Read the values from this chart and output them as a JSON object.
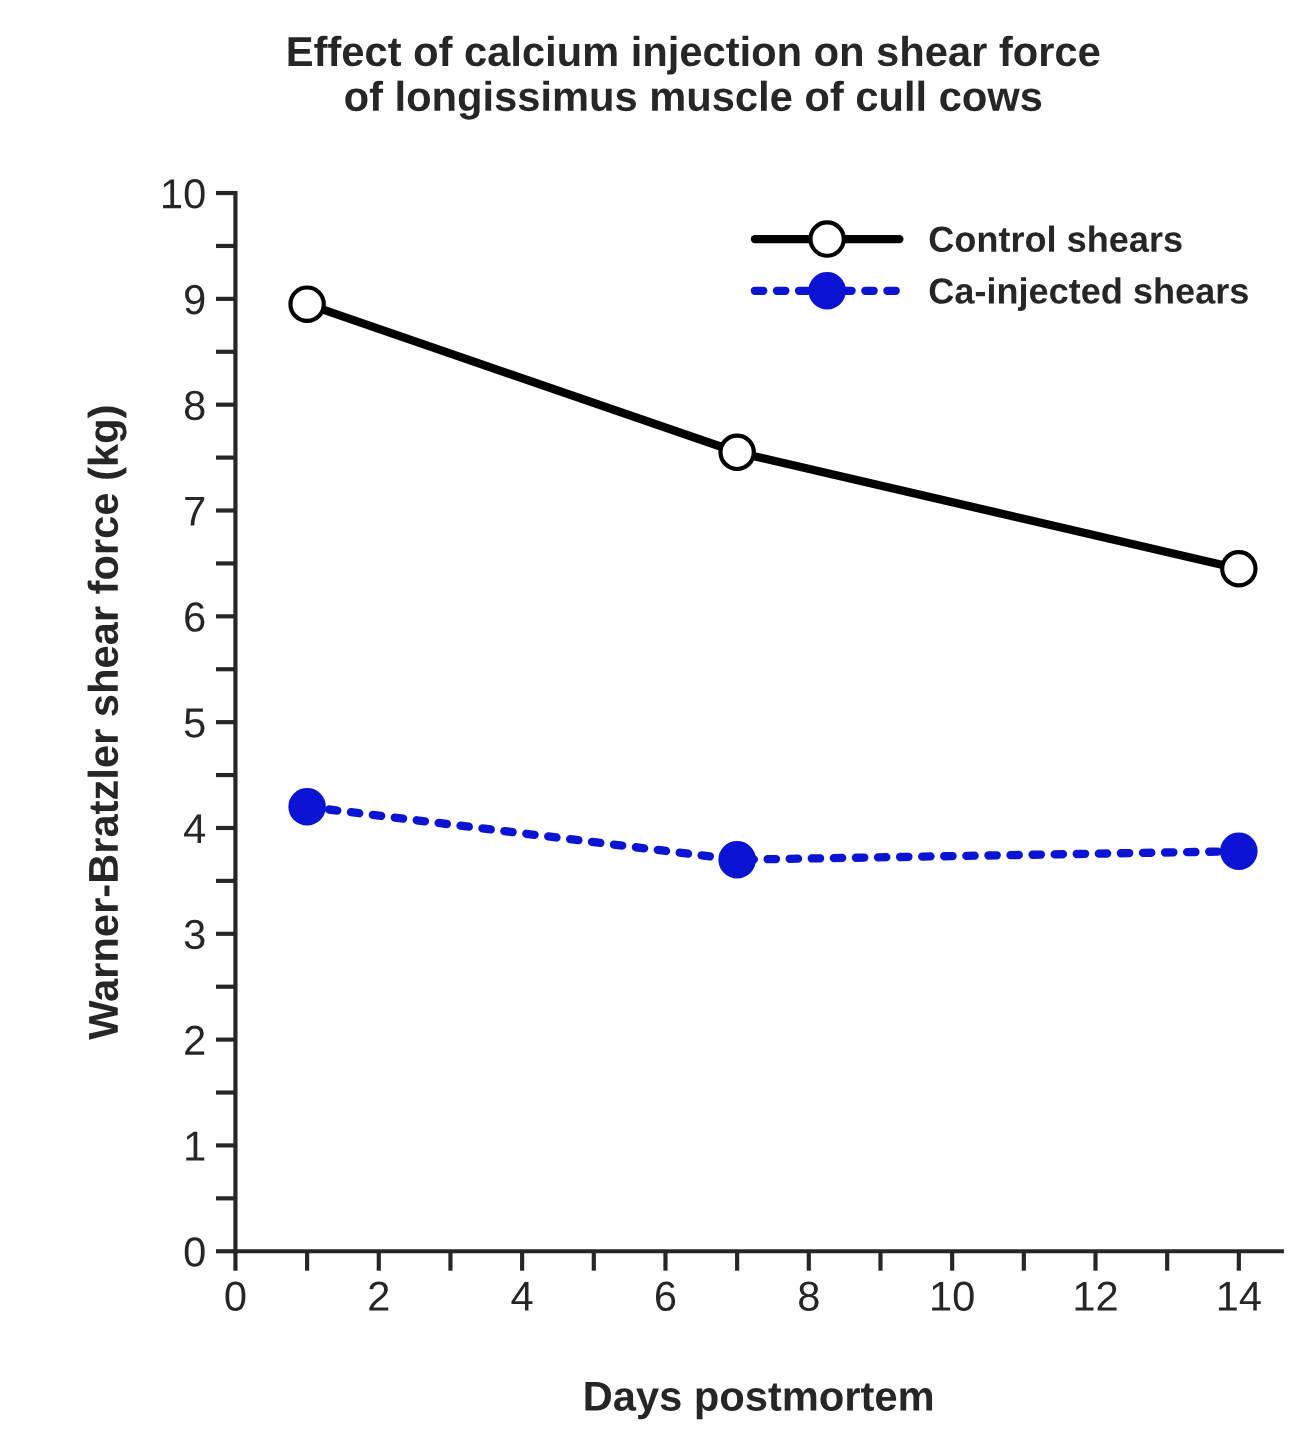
{
  "chart_data": {
    "type": "line",
    "title": "Effect of calcium injection on shear force\nof longissimus muscle of cull cows",
    "xlabel": "Days postmortem",
    "ylabel": "Warner-Bratzler shear force (kg)",
    "x": [
      1,
      7,
      14
    ],
    "series": [
      {
        "name": "Control shears",
        "color": "#000000",
        "values": [
          8.95,
          7.55,
          6.45
        ],
        "line_style": "solid"
      },
      {
        "name": "Ca-injected shears",
        "color": "#0a14d2",
        "values": [
          4.2,
          3.7,
          3.78
        ],
        "line_style": "dotted"
      }
    ],
    "xlim": [
      0,
      14.6
    ],
    "ylim": [
      0,
      10
    ],
    "xticks": [
      0,
      {
        "value": 1,
        "label": null
      },
      2,
      {
        "value": 3,
        "label": null
      },
      4,
      {
        "value": 5,
        "label": null
      },
      6,
      {
        "value": 7,
        "label": null
      },
      8,
      {
        "value": 9,
        "label": null
      },
      10,
      {
        "value": 11,
        "label": null
      },
      12,
      {
        "value": 13,
        "label": null
      },
      14
    ],
    "yticks": [
      0,
      {
        "value": 0.5,
        "label": null
      },
      1,
      {
        "value": 1.5,
        "label": null
      },
      2,
      {
        "value": 2.5,
        "label": null
      },
      3,
      {
        "value": 3.5,
        "label": null
      },
      4,
      {
        "value": 4.5,
        "label": null
      },
      5,
      {
        "value": 5.5,
        "label": null
      },
      6,
      {
        "value": 6.5,
        "label": null
      },
      7,
      {
        "value": 7.5,
        "label": null
      },
      8,
      {
        "value": 8.5,
        "label": null
      },
      9,
      {
        "value": 9.5,
        "label": null
      },
      10
    ],
    "marker": "circle",
    "grid": false,
    "legend": "top right"
  }
}
